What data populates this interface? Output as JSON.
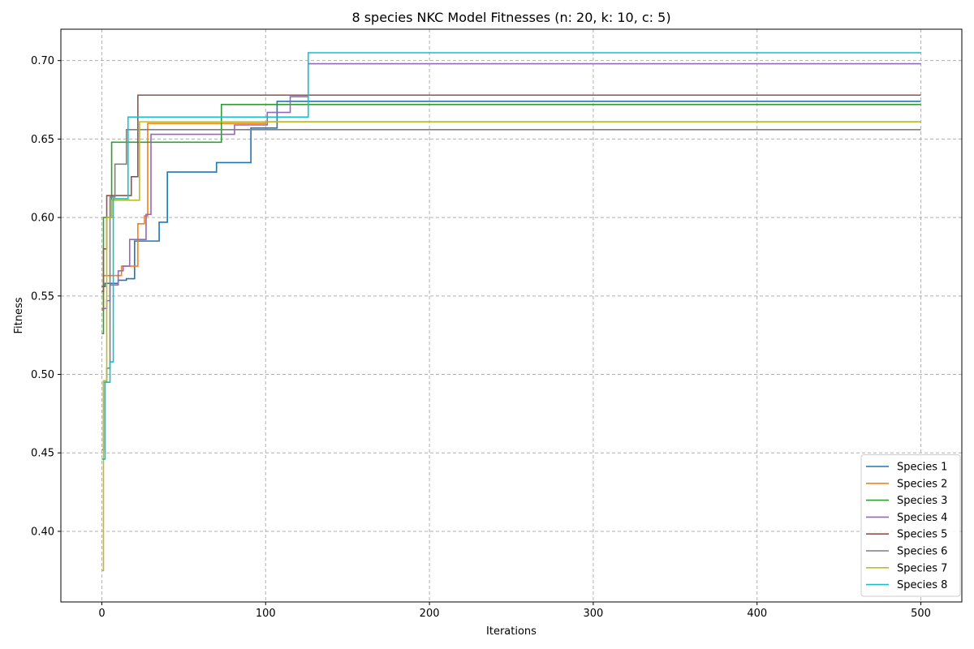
{
  "chart_data": {
    "type": "line",
    "title": "8 species NKC Model Fitnesses (n: 20, k: 10, c: 5)",
    "xlabel": "Iterations",
    "ylabel": "Fitness",
    "xlim": [
      -25,
      525
    ],
    "ylim": [
      0.355,
      0.72
    ],
    "xticks": [
      0,
      100,
      200,
      300,
      400,
      500
    ],
    "yticks": [
      0.4,
      0.45,
      0.5,
      0.55,
      0.6,
      0.65,
      0.7
    ],
    "grid": true,
    "grid_style": "dashed",
    "legend_position": "lower-right",
    "step": true,
    "series": [
      {
        "name": "Species 1",
        "color": "#1f77b4",
        "x": [
          0,
          2,
          10,
          15,
          20,
          35,
          38,
          40,
          70,
          91,
          107,
          500
        ],
        "y": [
          0.556,
          0.558,
          0.56,
          0.561,
          0.585,
          0.597,
          0.597,
          0.629,
          0.635,
          0.657,
          0.674,
          0.674
        ]
      },
      {
        "name": "Species 2",
        "color": "#ff7f0e",
        "x": [
          0,
          1,
          5,
          12,
          22,
          24,
          26,
          28,
          100,
          500
        ],
        "y": [
          0.541,
          0.563,
          0.563,
          0.569,
          0.596,
          0.596,
          0.601,
          0.66,
          0.661,
          0.661
        ]
      },
      {
        "name": "Species 3",
        "color": "#2ca02c",
        "x": [
          0,
          1,
          6,
          73,
          500
        ],
        "y": [
          0.526,
          0.6,
          0.648,
          0.672,
          0.672
        ]
      },
      {
        "name": "Species 4",
        "color": "#9467bd",
        "x": [
          0,
          3,
          5,
          10,
          13,
          17,
          25,
          27,
          30,
          81,
          101,
          115,
          126,
          500
        ],
        "y": [
          0.542,
          0.547,
          0.557,
          0.566,
          0.569,
          0.586,
          0.586,
          0.602,
          0.653,
          0.659,
          0.667,
          0.677,
          0.698,
          0.698
        ]
      },
      {
        "name": "Species 5",
        "color": "#8c564b",
        "x": [
          0,
          1,
          3,
          18,
          20,
          22,
          500
        ],
        "y": [
          0.553,
          0.58,
          0.614,
          0.626,
          0.626,
          0.678,
          0.678
        ]
      },
      {
        "name": "Species 6",
        "color": "#7f7f7f",
        "x": [
          0,
          1,
          3,
          5,
          8,
          15,
          500
        ],
        "y": [
          0.452,
          0.495,
          0.504,
          0.613,
          0.634,
          0.656,
          0.656
        ]
      },
      {
        "name": "Species 7",
        "color": "#bcbd22",
        "x": [
          0,
          1,
          3,
          6,
          21,
          23,
          500
        ],
        "y": [
          0.375,
          0.496,
          0.6,
          0.611,
          0.611,
          0.661,
          0.661
        ]
      },
      {
        "name": "Species 8",
        "color": "#17becf",
        "x": [
          0,
          2,
          5,
          7,
          14,
          16,
          125,
          126,
          500
        ],
        "y": [
          0.446,
          0.495,
          0.508,
          0.612,
          0.612,
          0.664,
          0.664,
          0.705,
          0.705
        ]
      }
    ]
  }
}
